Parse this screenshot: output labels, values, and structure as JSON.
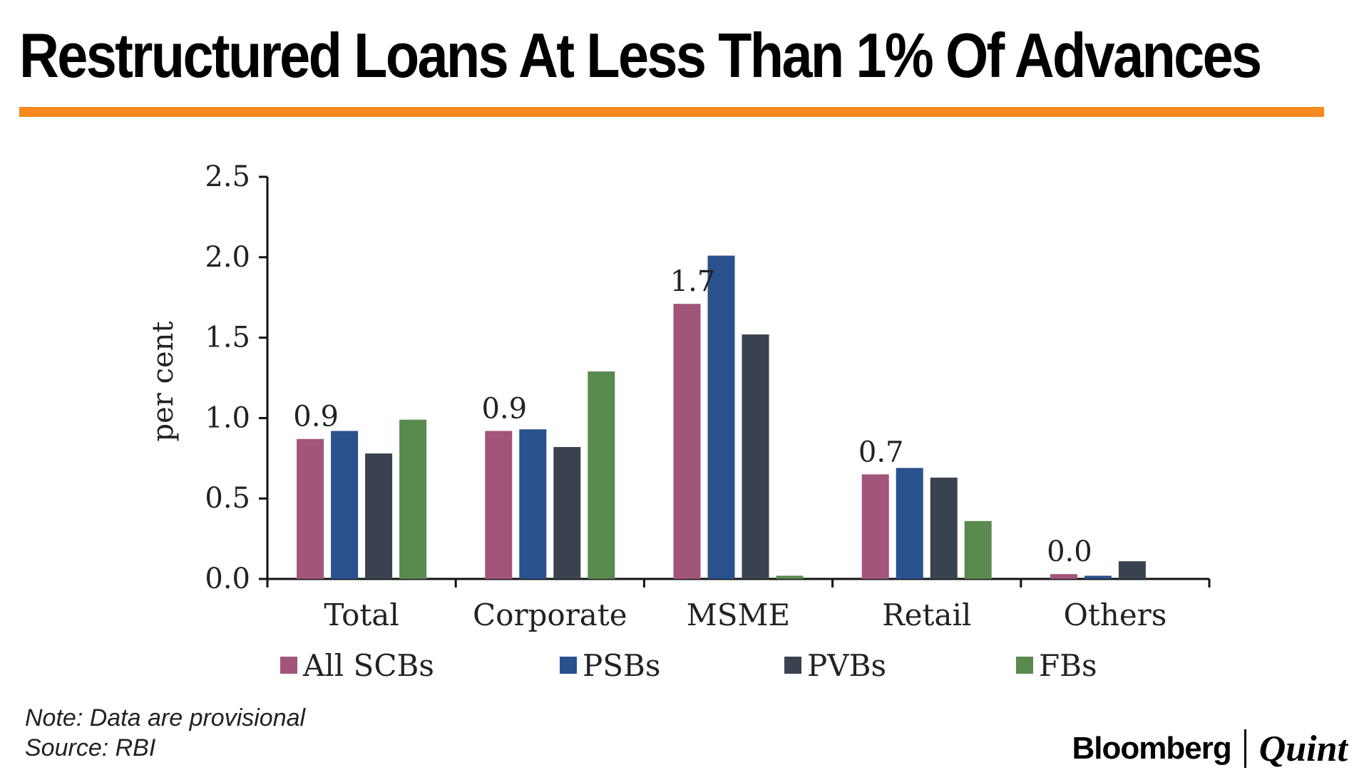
{
  "title": "Restructured Loans At Less Than 1% Of Advances",
  "accent_color": "#F7891F",
  "chart_data": {
    "type": "bar",
    "ylabel": "per cent",
    "xlabel": "",
    "ylim": [
      0,
      2.5
    ],
    "yticks": [
      "0.0",
      "0.5",
      "1.0",
      "1.5",
      "2.0",
      "2.5"
    ],
    "categories": [
      "Total",
      "Corporate",
      "MSME",
      "Retail",
      "Others"
    ],
    "series": [
      {
        "name": "All SCBs",
        "color": "#A25479",
        "values": [
          0.87,
          0.92,
          1.71,
          0.65,
          0.03
        ]
      },
      {
        "name": "PSBs",
        "color": "#28518E",
        "values": [
          0.92,
          0.93,
          2.01,
          0.69,
          0.02
        ]
      },
      {
        "name": "PVBs",
        "color": "#3A424F",
        "values": [
          0.78,
          0.82,
          1.52,
          0.63,
          0.11
        ]
      },
      {
        "name": "FBs",
        "color": "#598A4E",
        "values": [
          0.99,
          1.29,
          0.02,
          0.36,
          0.0
        ]
      }
    ],
    "data_labels": [
      {
        "category": "Total",
        "series": "All SCBs",
        "text": "0.9"
      },
      {
        "category": "Corporate",
        "series": "All SCBs",
        "text": "0.9"
      },
      {
        "category": "MSME",
        "series": "All SCBs",
        "text": "1.7"
      },
      {
        "category": "Retail",
        "series": "All SCBs",
        "text": "0.7"
      },
      {
        "category": "Others",
        "series": "All SCBs",
        "text": "0.0"
      }
    ],
    "legend_position": "bottom",
    "grid": false
  },
  "footer": {
    "note": "Note: Data are  provisional",
    "source": "Source: RBI",
    "brand_left": "Bloomberg",
    "brand_right": "Quint"
  }
}
